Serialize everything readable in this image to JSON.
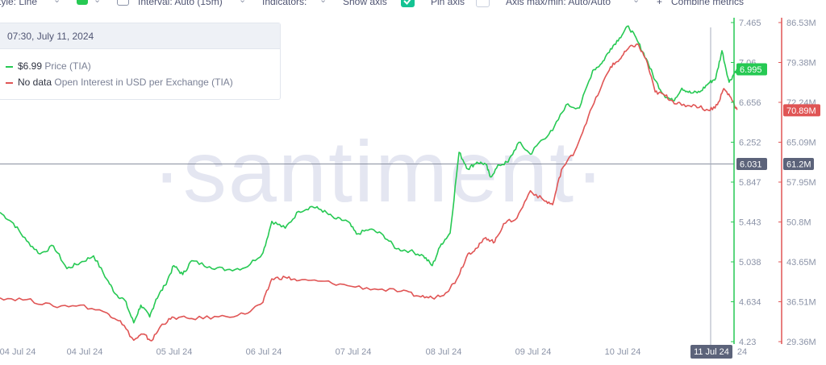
{
  "toolbar": {
    "style_label": "Style: Line",
    "color_swatch": "#26c953",
    "interval_label": "Interval: Auto (15m)",
    "indicators_label": "Indicators:",
    "show_axis_label": "Show axis",
    "show_axis_checked": true,
    "pin_axis_label": "Pin axis",
    "pin_axis_checked": false,
    "axis_maxmin_label": "Axis max/min: Auto/Auto",
    "combine_label": "Combine metrics",
    "plus_glyph": "+"
  },
  "tooltip": {
    "date": "07:30, July 11, 2024",
    "rows": [
      {
        "value": "$6.99",
        "name": "Price (TIA)",
        "color": "#26c953"
      },
      {
        "value": "No data",
        "name": "Open Interest in USD per Exchange (TIA)",
        "color": "#e05555"
      }
    ]
  },
  "watermark": "·santiment·",
  "chart_data": {
    "type": "line",
    "x_labels": [
      "04 Jul 24",
      "04 Jul 24",
      "05 Jul 24",
      "06 Jul 24",
      "07 Jul 24",
      "08 Jul 24",
      "09 Jul 24",
      "10 Jul 24",
      "24"
    ],
    "x_active_label": "11 Jul 24",
    "series": [
      {
        "name": "Price (TIA)",
        "color": "#26c953",
        "axis": "left",
        "y_ticks": [
          "7.465",
          "7.06",
          "6.656",
          "6.252",
          "5.847",
          "5.443",
          "5.038",
          "4.634",
          "4.23"
        ],
        "ylim": [
          4.23,
          7.465
        ],
        "current_badge": "6.995",
        "points": [
          [
            0,
            5.54
          ],
          [
            0.15,
            5.43
          ],
          [
            0.3,
            5.25
          ],
          [
            0.45,
            5.12
          ],
          [
            0.6,
            5.2
          ],
          [
            0.75,
            4.97
          ],
          [
            0.9,
            5.03
          ],
          [
            1.05,
            5.1
          ],
          [
            1.2,
            4.86
          ],
          [
            1.3,
            4.71
          ],
          [
            1.4,
            4.65
          ],
          [
            1.5,
            4.42
          ],
          [
            1.58,
            4.6
          ],
          [
            1.68,
            4.48
          ],
          [
            1.75,
            4.66
          ],
          [
            1.85,
            4.8
          ],
          [
            1.95,
            5.0
          ],
          [
            2.05,
            4.91
          ],
          [
            2.15,
            5.05
          ],
          [
            2.35,
            4.99
          ],
          [
            2.55,
            4.96
          ],
          [
            2.75,
            4.98
          ],
          [
            2.95,
            5.13
          ],
          [
            3.05,
            5.45
          ],
          [
            3.2,
            5.38
          ],
          [
            3.35,
            5.55
          ],
          [
            3.5,
            5.6
          ],
          [
            3.6,
            5.57
          ],
          [
            3.75,
            5.48
          ],
          [
            3.9,
            5.45
          ],
          [
            4.0,
            5.32
          ],
          [
            4.15,
            5.37
          ],
          [
            4.3,
            5.31
          ],
          [
            4.45,
            5.17
          ],
          [
            4.6,
            5.15
          ],
          [
            4.75,
            5.1
          ],
          [
            4.85,
            5.0
          ],
          [
            4.95,
            5.22
          ],
          [
            5.05,
            5.33
          ],
          [
            5.15,
            6.15
          ],
          [
            5.25,
            5.98
          ],
          [
            5.35,
            6.05
          ],
          [
            5.45,
            6.03
          ],
          [
            5.5,
            5.9
          ],
          [
            5.6,
            6.02
          ],
          [
            5.7,
            6.05
          ],
          [
            5.82,
            6.25
          ],
          [
            5.95,
            6.13
          ],
          [
            6.05,
            6.25
          ],
          [
            6.2,
            6.37
          ],
          [
            6.35,
            6.63
          ],
          [
            6.5,
            6.6
          ],
          [
            6.65,
            6.98
          ],
          [
            6.75,
            7.05
          ],
          [
            6.85,
            7.2
          ],
          [
            6.95,
            7.31
          ],
          [
            7.05,
            7.43
          ],
          [
            7.15,
            7.28
          ],
          [
            7.25,
            7.1
          ],
          [
            7.35,
            6.88
          ],
          [
            7.45,
            6.73
          ],
          [
            7.55,
            6.67
          ],
          [
            7.65,
            6.8
          ],
          [
            7.75,
            6.75
          ],
          [
            7.85,
            6.76
          ],
          [
            7.95,
            6.85
          ],
          [
            8.03,
            6.9
          ],
          [
            8.1,
            7.18
          ],
          [
            8.18,
            6.86
          ],
          [
            8.25,
            6.97
          ],
          [
            8.3,
            6.995
          ]
        ]
      },
      {
        "name": "Open Interest in USD per Exchange (TIA)",
        "color": "#e05555",
        "axis": "right",
        "y_ticks": [
          "86.53M",
          "79.38M",
          "72.24M",
          "65.09M",
          "57.95M",
          "50.8M",
          "43.65M",
          "36.51M",
          "29.36M"
        ],
        "ylim": [
          29.36,
          86.53
        ],
        "current_badge": "70.89M",
        "points": [
          [
            0,
            37.2
          ],
          [
            0.3,
            36.9
          ],
          [
            0.6,
            35.7
          ],
          [
            0.9,
            35.9
          ],
          [
            1.2,
            34.5
          ],
          [
            1.35,
            33.1
          ],
          [
            1.5,
            29.6
          ],
          [
            1.6,
            30.7
          ],
          [
            1.7,
            29.5
          ],
          [
            1.82,
            32.5
          ],
          [
            1.95,
            33.7
          ],
          [
            2.15,
            33.5
          ],
          [
            2.45,
            33.8
          ],
          [
            2.75,
            34.3
          ],
          [
            2.95,
            36.4
          ],
          [
            3.05,
            40.6
          ],
          [
            3.2,
            40.9
          ],
          [
            3.35,
            40.3
          ],
          [
            3.6,
            40.2
          ],
          [
            3.9,
            39.4
          ],
          [
            4.2,
            38.8
          ],
          [
            4.5,
            38.4
          ],
          [
            4.7,
            37.5
          ],
          [
            4.85,
            37.2
          ],
          [
            5.0,
            38.1
          ],
          [
            5.12,
            40.4
          ],
          [
            5.25,
            45.1
          ],
          [
            5.35,
            46.1
          ],
          [
            5.45,
            48.0
          ],
          [
            5.55,
            47.2
          ],
          [
            5.65,
            50.5
          ],
          [
            5.8,
            51.5
          ],
          [
            5.95,
            56.4
          ],
          [
            6.1,
            54.7
          ],
          [
            6.2,
            53.9
          ],
          [
            6.3,
            60.2
          ],
          [
            6.45,
            63.5
          ],
          [
            6.6,
            69.7
          ],
          [
            6.75,
            75.2
          ],
          [
            6.85,
            78.6
          ],
          [
            6.95,
            79.9
          ],
          [
            7.05,
            81.9
          ],
          [
            7.15,
            82.7
          ],
          [
            7.25,
            79.9
          ],
          [
            7.35,
            74.1
          ],
          [
            7.45,
            73.6
          ],
          [
            7.55,
            72.4
          ],
          [
            7.65,
            71.7
          ],
          [
            7.8,
            71.7
          ],
          [
            7.95,
            70.8
          ],
          [
            8.05,
            71.8
          ],
          [
            8.12,
            74.7
          ],
          [
            8.2,
            73.1
          ],
          [
            8.27,
            70.89
          ]
        ]
      }
    ],
    "crosshair": {
      "left_value": "6.031",
      "right_value": "61.2M"
    },
    "grid": false,
    "legend": "tooltip-top-left"
  }
}
